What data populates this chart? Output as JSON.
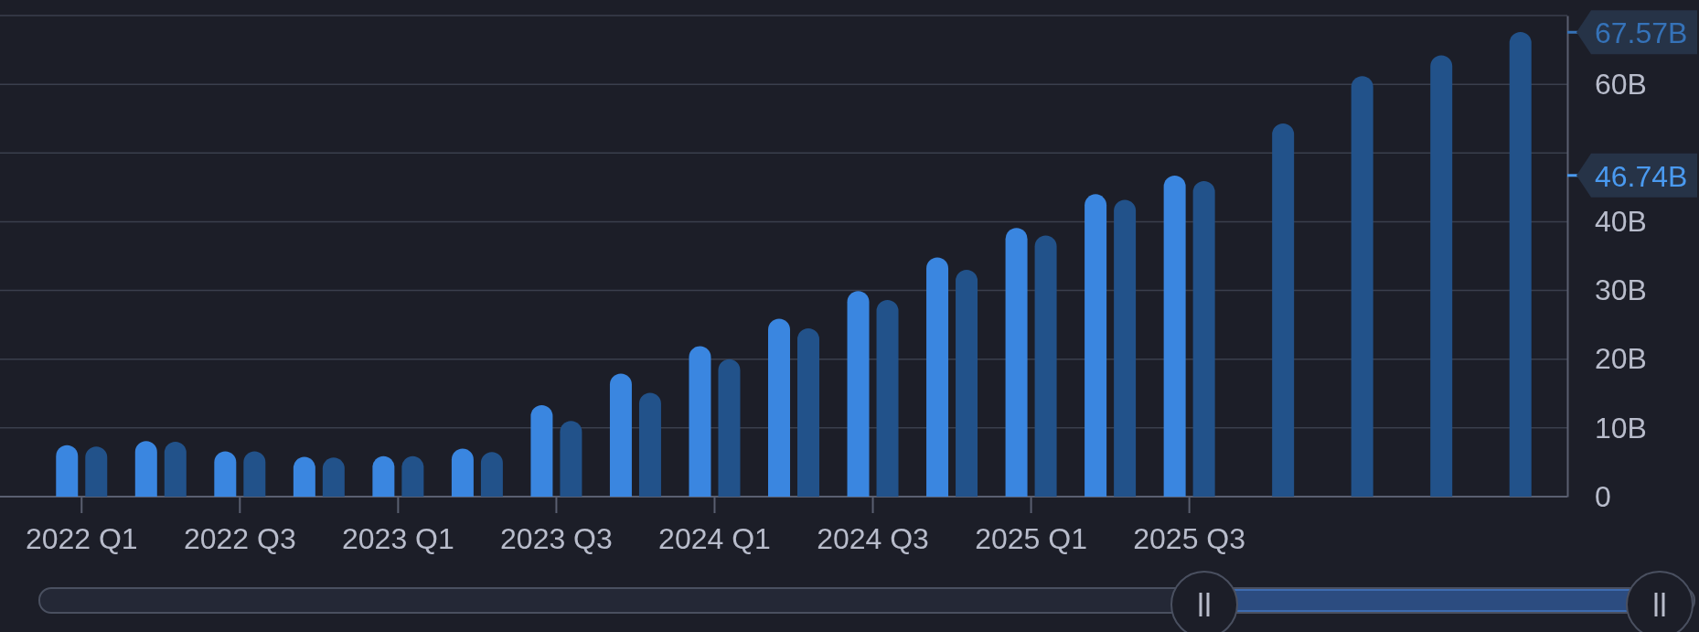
{
  "chart_data": {
    "type": "bar",
    "categories": [
      "2022 Q1",
      null,
      "2022 Q3",
      null,
      "2023 Q1",
      null,
      "2023 Q3",
      null,
      "2024 Q1",
      null,
      "2024 Q3",
      null,
      "2025 Q1",
      null,
      "2025 Q3",
      null,
      null,
      null,
      null
    ],
    "series": [
      {
        "color": "#3a86e0",
        "values": [
          7.5,
          8.1,
          6.6,
          5.8,
          5.9,
          7.0,
          13.3,
          17.9,
          21.9,
          25.9,
          29.9,
          34.8,
          39.1,
          44.0,
          46.7,
          null,
          null,
          null,
          null
        ]
      },
      {
        "color": "#22528a",
        "values": [
          7.3,
          8.0,
          6.6,
          5.7,
          5.9,
          6.5,
          11.0,
          15.1,
          20.0,
          24.5,
          28.6,
          33.0,
          38.0,
          43.2,
          45.9,
          54.3,
          61.2,
          64.2,
          67.6
        ]
      }
    ],
    "ylim": [
      0,
      70
    ],
    "yticks": [
      0,
      {
        "value": 10,
        "label": "10B"
      },
      {
        "value": 20,
        "label": "20B"
      },
      {
        "value": 30,
        "label": "30B"
      },
      {
        "value": 40,
        "label": "40B"
      },
      {
        "value": 50,
        "label": null
      },
      {
        "value": 60,
        "label": "60B"
      },
      {
        "value": 70,
        "label": null
      }
    ],
    "grid": "y",
    "ref_lines": [
      {
        "axis": "y",
        "value": 67.57,
        "label": "67.57B",
        "color": "#3572b8"
      },
      {
        "axis": "y",
        "value": 46.74,
        "label": "46.74B",
        "color": "#4a9af0"
      }
    ]
  }
}
